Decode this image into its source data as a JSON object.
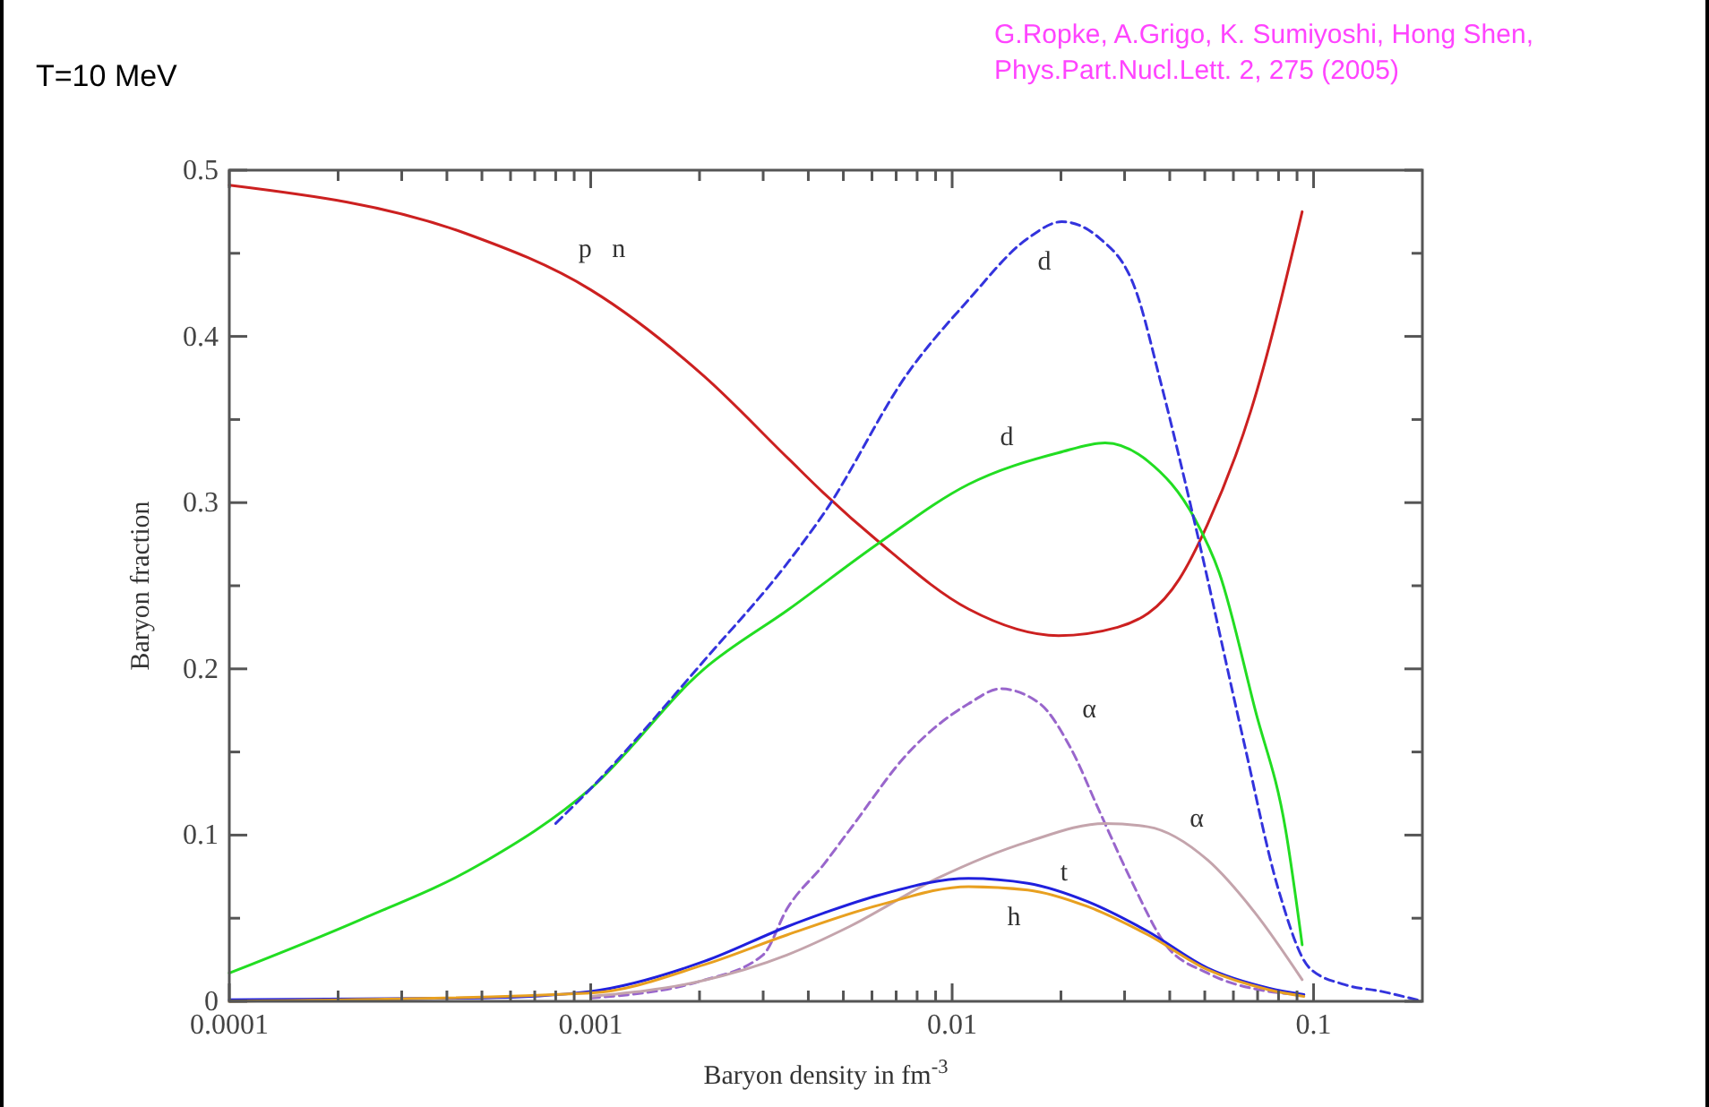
{
  "chart_data": {
    "type": "line",
    "title": "T=10 MeV",
    "xlabel": "Baryon density in fm$^{-3}$",
    "ylabel": "Baryon fraction",
    "log": "x",
    "xlim": [
      0.0001,
      0.2
    ],
    "ylim": [
      0,
      0.5
    ],
    "xticks": [
      0.0001,
      {
        "value": 0.0002,
        "label": null
      },
      {
        "value": 0.0003,
        "label": null
      },
      {
        "value": 0.0004,
        "label": null
      },
      {
        "value": 0.0005,
        "label": null
      },
      {
        "value": 0.0006,
        "label": null
      },
      {
        "value": 0.0007,
        "label": null
      },
      {
        "value": 0.0008,
        "label": null
      },
      {
        "value": 0.0009,
        "label": null
      },
      0.001,
      {
        "value": 0.002,
        "label": null
      },
      {
        "value": 0.003,
        "label": null
      },
      {
        "value": 0.004,
        "label": null
      },
      {
        "value": 0.005,
        "label": null
      },
      {
        "value": 0.006,
        "label": null
      },
      {
        "value": 0.007,
        "label": null
      },
      {
        "value": 0.008,
        "label": null
      },
      {
        "value": 0.009,
        "label": null
      },
      0.01,
      {
        "value": 0.02,
        "label": null
      },
      {
        "value": 0.03,
        "label": null
      },
      {
        "value": 0.04,
        "label": null
      },
      {
        "value": 0.05,
        "label": null
      },
      {
        "value": 0.06,
        "label": null
      },
      {
        "value": 0.07,
        "label": null
      },
      {
        "value": 0.08,
        "label": null
      },
      {
        "value": 0.09,
        "label": null
      },
      0.1
    ],
    "yticks": [
      0,
      {
        "value": 0.05,
        "label": null
      },
      0.1,
      {
        "value": 0.15,
        "label": null
      },
      0.2,
      {
        "value": 0.25,
        "label": null
      },
      0.3,
      {
        "value": 0.35,
        "label": null
      },
      0.4,
      {
        "value": 0.45,
        "label": null
      },
      0.5
    ],
    "grid": false,
    "series": [
      {
        "name": "p   n",
        "color": "#cc2020",
        "line_style": "solid",
        "x": [
          0.0001,
          0.00045,
          0.001,
          0.00206,
          0.00354,
          0.0044,
          0.0063,
          0.0111,
          0.0197,
          0.0287,
          0.0425,
          0.0509,
          0.067,
          0.093
        ],
        "values": [
          0.491,
          0.462,
          0.428,
          0.376,
          0.326,
          0.306,
          0.276,
          0.236,
          0.22,
          0.225,
          0.254,
          0.287,
          0.355,
          0.475
        ]
      },
      {
        "name": "d",
        "color": "#22dd22",
        "line_style": "solid",
        "x": [
          0.0001,
          0.00023,
          0.00049,
          0.001,
          0.00206,
          0.00354,
          0.0063,
          0.0111,
          0.0197,
          0.0265,
          0.0348,
          0.047,
          0.0548,
          0.069,
          0.0837,
          0.093
        ],
        "values": [
          0.017,
          0.049,
          0.082,
          0.128,
          0.2,
          0.236,
          0.276,
          0.311,
          0.33,
          0.336,
          0.325,
          0.29,
          0.258,
          0.175,
          0.103,
          0.034
        ]
      },
      {
        "name": "d",
        "color": "#3333dd",
        "line_style": "dashed",
        "x": [
          0.0008,
          0.001,
          0.00206,
          0.00354,
          0.0044,
          0.0076,
          0.0111,
          0.0162,
          0.0201,
          0.0256,
          0.0323,
          0.0377,
          0.047,
          0.064,
          0.08,
          0.0975,
          0.122,
          0.154,
          0.2
        ],
        "values": [
          0.107,
          0.128,
          0.205,
          0.265,
          0.293,
          0.379,
          0.422,
          0.459,
          0.469,
          0.459,
          0.427,
          0.373,
          0.287,
          0.157,
          0.067,
          0.02,
          0.01,
          0.006,
          0
        ]
      },
      {
        "name": "α",
        "color": "#9966cc",
        "line_style": "dashed",
        "x": [
          0.001,
          0.002,
          0.003,
          0.0035,
          0.0044,
          0.0052,
          0.0076,
          0.0111,
          0.0136,
          0.0175,
          0.0212,
          0.0256,
          0.0311,
          0.039,
          0.0509,
          0.075,
          0.094
        ],
        "values": [
          0.002,
          0.012,
          0.028,
          0.056,
          0.082,
          0.103,
          0.15,
          0.179,
          0.188,
          0.179,
          0.153,
          0.114,
          0.074,
          0.034,
          0.017,
          0.006,
          0.004
        ]
      },
      {
        "name": "α",
        "color": "#c4a4ac",
        "line_style": "solid",
        "x": [
          0.001,
          0.002,
          0.0035,
          0.0052,
          0.0091,
          0.0162,
          0.0265,
          0.0348,
          0.0509,
          0.069,
          0.093
        ],
        "values": [
          0.003,
          0.012,
          0.028,
          0.045,
          0.074,
          0.096,
          0.107,
          0.105,
          0.085,
          0.053,
          0.013
        ]
      },
      {
        "name": "t",
        "color": "#2020dd",
        "line_style": "solid",
        "x": [
          0.0001,
          0.0005,
          0.001,
          0.00206,
          0.0035,
          0.0044,
          0.0063,
          0.0111,
          0.0162,
          0.0237,
          0.0348,
          0.0509,
          0.075,
          0.094
        ],
        "values": [
          0.001,
          0.002,
          0.006,
          0.024,
          0.045,
          0.053,
          0.064,
          0.074,
          0.071,
          0.06,
          0.042,
          0.02,
          0.008,
          0.004
        ]
      },
      {
        "name": "h",
        "color": "#e8a020",
        "line_style": "solid",
        "x": [
          0.0001,
          0.001,
          0.00206,
          0.0035,
          0.0063,
          0.0111,
          0.0162,
          0.0237,
          0.0348,
          0.0509,
          0.075,
          0.094
        ],
        "values": [
          0,
          0.005,
          0.022,
          0.04,
          0.058,
          0.069,
          0.067,
          0.057,
          0.04,
          0.019,
          0.007,
          0.003
        ]
      }
    ],
    "annotations": [
      "G.Ropke, A.Grigo, K. Sumiyoshi, Hong Shen,\nPhys.Part.Nucl.Lett. 2, 275 (2005)"
    ]
  }
}
